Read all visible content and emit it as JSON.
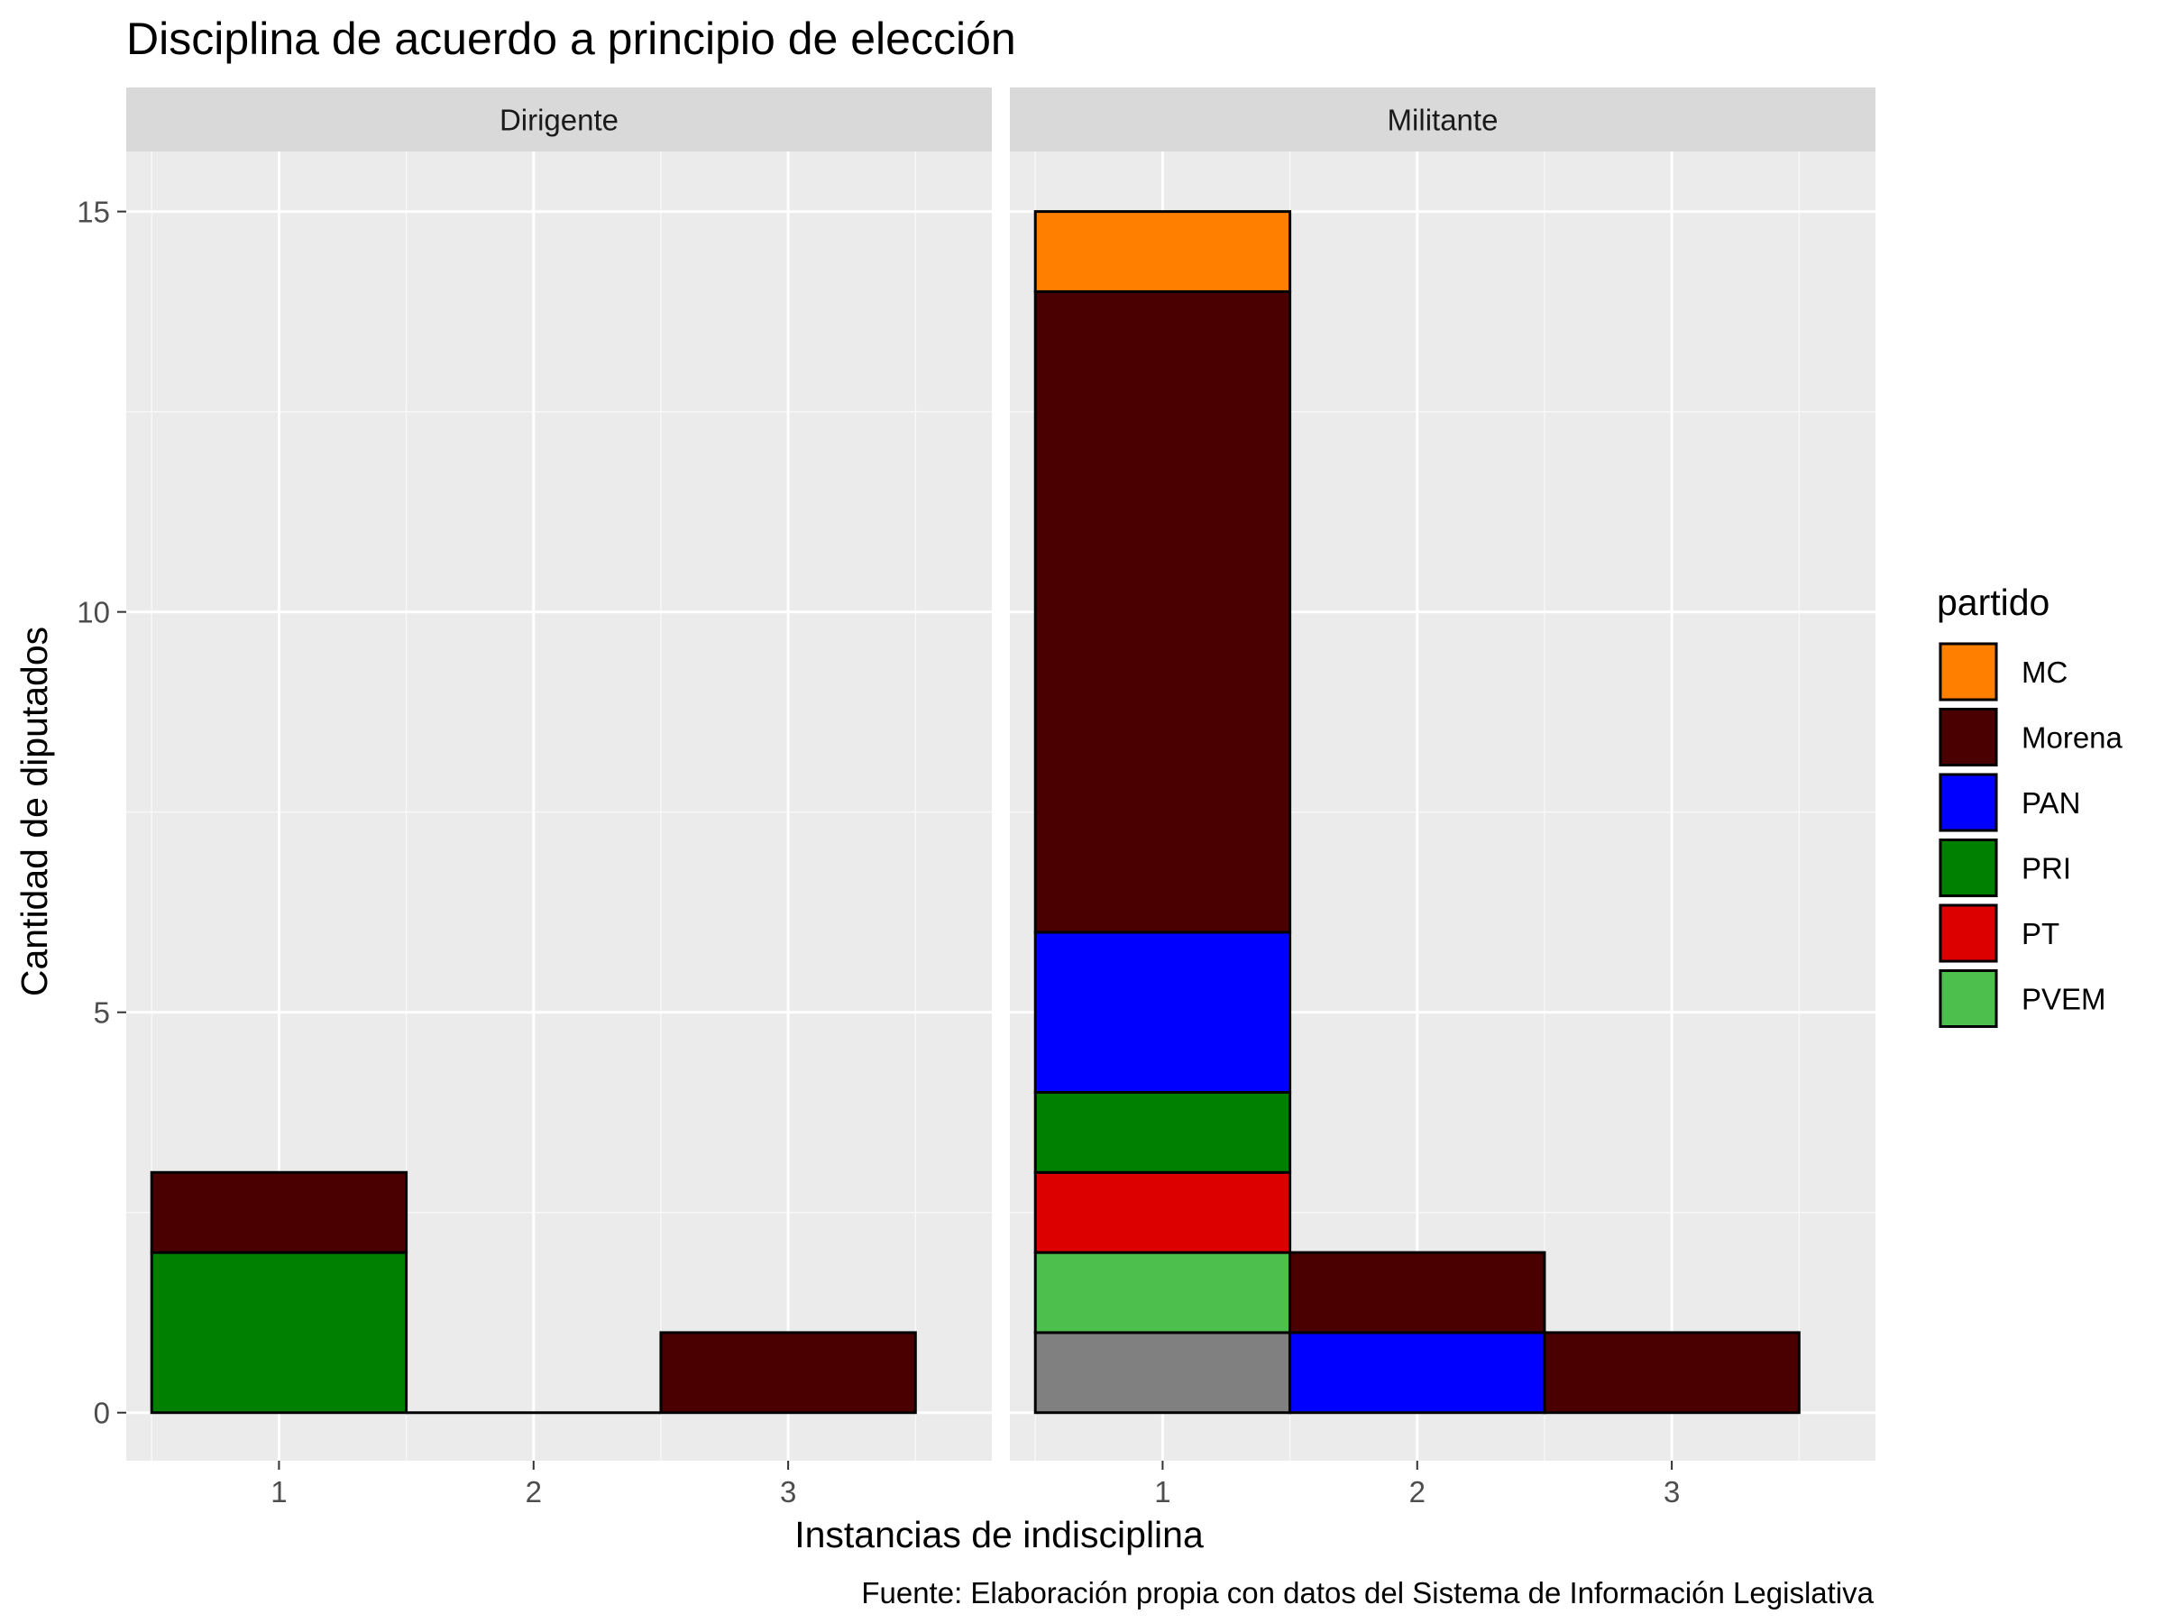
{
  "chart_data": {
    "type": "bar",
    "stacked": true,
    "title": "Disciplina de acuerdo a principio de elección",
    "xlabel": "Instancias de indisciplina",
    "ylabel": "Cantidad de diputados",
    "caption": "Fuente: Elaboración propia con datos del Sistema de Información Legislativa",
    "categories": [
      "1",
      "2",
      "3"
    ],
    "yticks": [
      "0",
      "5",
      "10",
      "15"
    ],
    "ylim": [
      -0.6,
      15.75
    ],
    "grid": true,
    "legend": {
      "title": "partido",
      "position": "right",
      "entries": [
        {
          "name": "MC",
          "color": "#FF8000"
        },
        {
          "name": "Morena",
          "color": "#4A0000"
        },
        {
          "name": "PAN",
          "color": "#0000FF"
        },
        {
          "name": "PRI",
          "color": "#008000"
        },
        {
          "name": "PT",
          "color": "#DD0000"
        },
        {
          "name": "PVEM",
          "color": "#4CBF4C"
        }
      ]
    },
    "unlabeled_color": "#808080",
    "panels": [
      {
        "label": "Dirigente",
        "stacks": [
          {
            "x": "1",
            "segments": [
              {
                "party": "PRI",
                "value": 2
              },
              {
                "party": "Morena",
                "value": 1
              }
            ]
          },
          {
            "x": "2",
            "segments": []
          },
          {
            "x": "3",
            "segments": [
              {
                "party": "Morena",
                "value": 1
              }
            ]
          }
        ]
      },
      {
        "label": "Militante",
        "stacks": [
          {
            "x": "1",
            "segments": [
              {
                "party": "",
                "value": 1
              },
              {
                "party": "PVEM",
                "value": 1
              },
              {
                "party": "PT",
                "value": 1
              },
              {
                "party": "PRI",
                "value": 1
              },
              {
                "party": "PAN",
                "value": 2
              },
              {
                "party": "Morena",
                "value": 8
              },
              {
                "party": "MC",
                "value": 1
              }
            ]
          },
          {
            "x": "2",
            "segments": [
              {
                "party": "PAN",
                "value": 1
              },
              {
                "party": "Morena",
                "value": 1
              }
            ]
          },
          {
            "x": "3",
            "segments": [
              {
                "party": "Morena",
                "value": 1
              }
            ]
          }
        ]
      }
    ]
  }
}
